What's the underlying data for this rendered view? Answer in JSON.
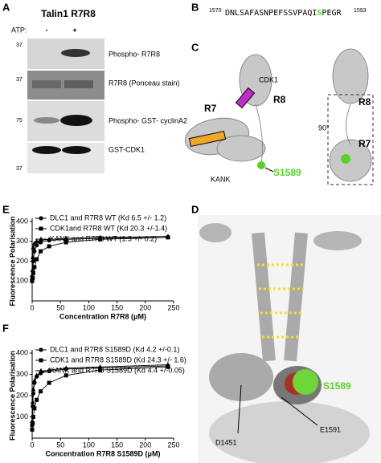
{
  "panel_labels": [
    "A",
    "B",
    "C",
    "D",
    "E",
    "F"
  ],
  "panel_a": {
    "title": "Talin1 R7R8",
    "atp_label": "ATP:",
    "lanes": [
      "-",
      "+"
    ],
    "blots": [
      {
        "label": "Phospho- R7R8",
        "marker": "37"
      },
      {
        "label": "R7R8 (Ponceau stain)",
        "marker": "37"
      },
      {
        "label": "Phospho- GST- cyclinA2",
        "marker": "75"
      },
      {
        "label": "GST-CDK1",
        "marker": "37"
      }
    ]
  },
  "panel_b": {
    "start": "1570",
    "sequence_before": "DNLSAFASNPEFSSVPAQI",
    "site": "S",
    "sequence_after": "PEGR",
    "end": "1593"
  },
  "panel_c": {
    "labels": [
      "CDK1",
      "R8",
      "R7",
      "KANK",
      "S1589",
      "90°",
      "R8",
      "R7"
    ]
  },
  "panel_d": {
    "labels": [
      "S1589",
      "E1591",
      "D1451"
    ]
  },
  "chart_data": [
    {
      "type": "line",
      "xlabel": "Concentration R7R8 (μM)",
      "ylabel": "Fluorescence Polarisation",
      "x": [
        0,
        1,
        2,
        4,
        8,
        15,
        30,
        60,
        120,
        240
      ],
      "xlim": [
        0,
        250
      ],
      "xticks": [
        0,
        50,
        100,
        150,
        200,
        250
      ],
      "ylim": [
        0,
        400
      ],
      "yticks": [
        100,
        200,
        300,
        400
      ],
      "legend": "upper left",
      "series": [
        {
          "name": "DLC1 and R7R8 WT (Kd 6.5 +/- 1.2)",
          "color": "#000000",
          "marker": "circle",
          "values": [
            110,
            150,
            200,
            250,
            280,
            295,
            305,
            310,
            315,
            320
          ]
        },
        {
          "name": "CDK1and R7R8 WT (Kd 20.3 +/-1.4)",
          "color": "#000000",
          "marker": "square",
          "values": [
            100,
            115,
            140,
            170,
            210,
            250,
            275,
            295,
            310,
            320
          ]
        },
        {
          "name": "KANK and R7R8 WT (1.3 +/- 0.2)",
          "color": "#000000",
          "marker": "triangle",
          "values": [
            130,
            220,
            270,
            290,
            300,
            305,
            310,
            315,
            320,
            325
          ]
        }
      ]
    },
    {
      "type": "line",
      "xlabel": "Concentration R7R8 S1589D (μM)",
      "ylabel": "Fluorescence Polarisation",
      "x": [
        0,
        1,
        2,
        4,
        8,
        15,
        30,
        60,
        120,
        240
      ],
      "xlim": [
        0,
        250
      ],
      "xticks": [
        0,
        50,
        100,
        150,
        200,
        250
      ],
      "ylim": [
        0,
        400
      ],
      "yticks": [
        100,
        200,
        300,
        400
      ],
      "legend": "upper left",
      "series": [
        {
          "name": "DLC1 and R7R8 S1589D (Kd 4.2 +/-0.1)",
          "color": "#000000",
          "marker": "circle",
          "values": [
            60,
            150,
            210,
            260,
            290,
            305,
            315,
            325,
            330,
            340
          ]
        },
        {
          "name": "CDK1 and R7R8 S1589D (Kd 24.3 +/- 1.6)",
          "color": "#000000",
          "marker": "square",
          "values": [
            40,
            70,
            100,
            140,
            180,
            220,
            260,
            295,
            320,
            335
          ]
        },
        {
          "name": "KANK and R7R8 S1589D (Kd 4.4 +/-0.05)",
          "color": "#000000",
          "marker": "triangle",
          "values": [
            80,
            170,
            230,
            270,
            295,
            310,
            320,
            330,
            335,
            345
          ]
        }
      ]
    }
  ]
}
